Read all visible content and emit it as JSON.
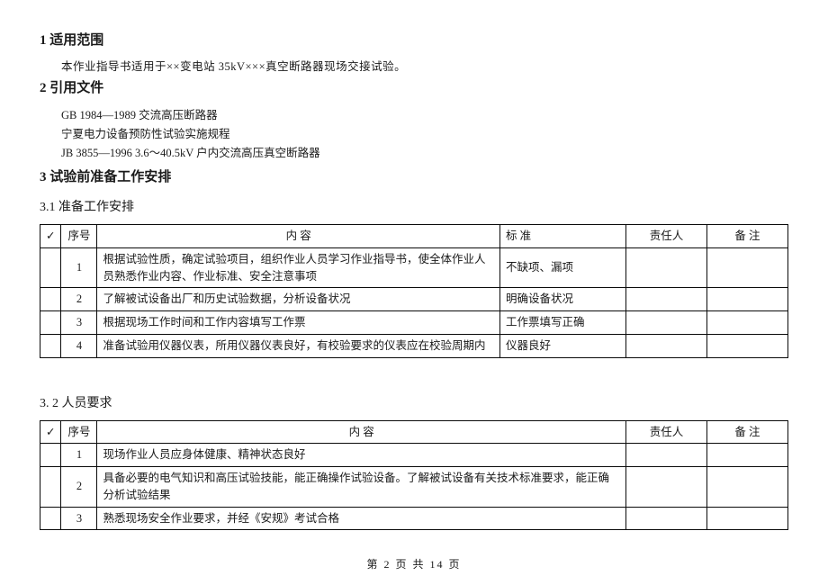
{
  "sec1": {
    "heading": "1  适用范围",
    "body": "本作业指导书适用于××变电站 35kV×××真空断路器现场交接试验。"
  },
  "sec2": {
    "heading": "2  引用文件",
    "refs": [
      "GB 1984—1989   交流高压断路器",
      "宁夏电力设备预防性试验实施规程",
      "JB 3855—1996  3.6～40.5kV 户内交流高压真空断路器"
    ]
  },
  "sec3": {
    "heading": "3  试验前准备工作安排"
  },
  "sec31": {
    "heading": "3.1 准备工作安排",
    "columns": {
      "check": "✓",
      "seq": "序号",
      "content": "内                    容",
      "std": "标        准",
      "resp": "责任人",
      "note": "备  注"
    },
    "rows": [
      {
        "seq": "1",
        "content": "根据试验性质，确定试验项目，组织作业人员学习作业指导书，使全体作业人员熟悉作业内容、作业标准、安全注意事项",
        "std": "不缺项、漏项"
      },
      {
        "seq": "2",
        "content": "了解被试设备出厂和历史试验数据，分析设备状况",
        "std": "明确设备状况"
      },
      {
        "seq": "3",
        "content": "根据现场工作时间和工作内容填写工作票",
        "std": "工作票填写正确"
      },
      {
        "seq": "4",
        "content": "准备试验用仪器仪表，所用仪器仪表良好，有校验要求的仪表应在校验周期内",
        "std": "仪器良好"
      }
    ]
  },
  "sec32": {
    "heading": "3. 2 人员要求",
    "columns": {
      "check": "✓",
      "seq": "序号",
      "content": "内        容",
      "resp": "责任人",
      "note": "备  注"
    },
    "rows": [
      {
        "seq": "1",
        "content": "现场作业人员应身体健康、精神状态良好"
      },
      {
        "seq": "2",
        "content": "具备必要的电气知识和高压试验技能，能正确操作试验设备。了解被试设备有关技术标准要求，能正确分析试验结果"
      },
      {
        "seq": "3",
        "content": "熟悉现场安全作业要求，并经《安规》考试合格"
      }
    ]
  },
  "footer": "第 2 页 共 14 页",
  "style": {
    "text_color": "#1a1a1a",
    "border_color": "#0a0a0a",
    "background": "#ffffff",
    "base_fontsize": 13,
    "heading_fontsize": 15,
    "body_fontsize": 12.5,
    "table_fontsize": 12.5
  }
}
